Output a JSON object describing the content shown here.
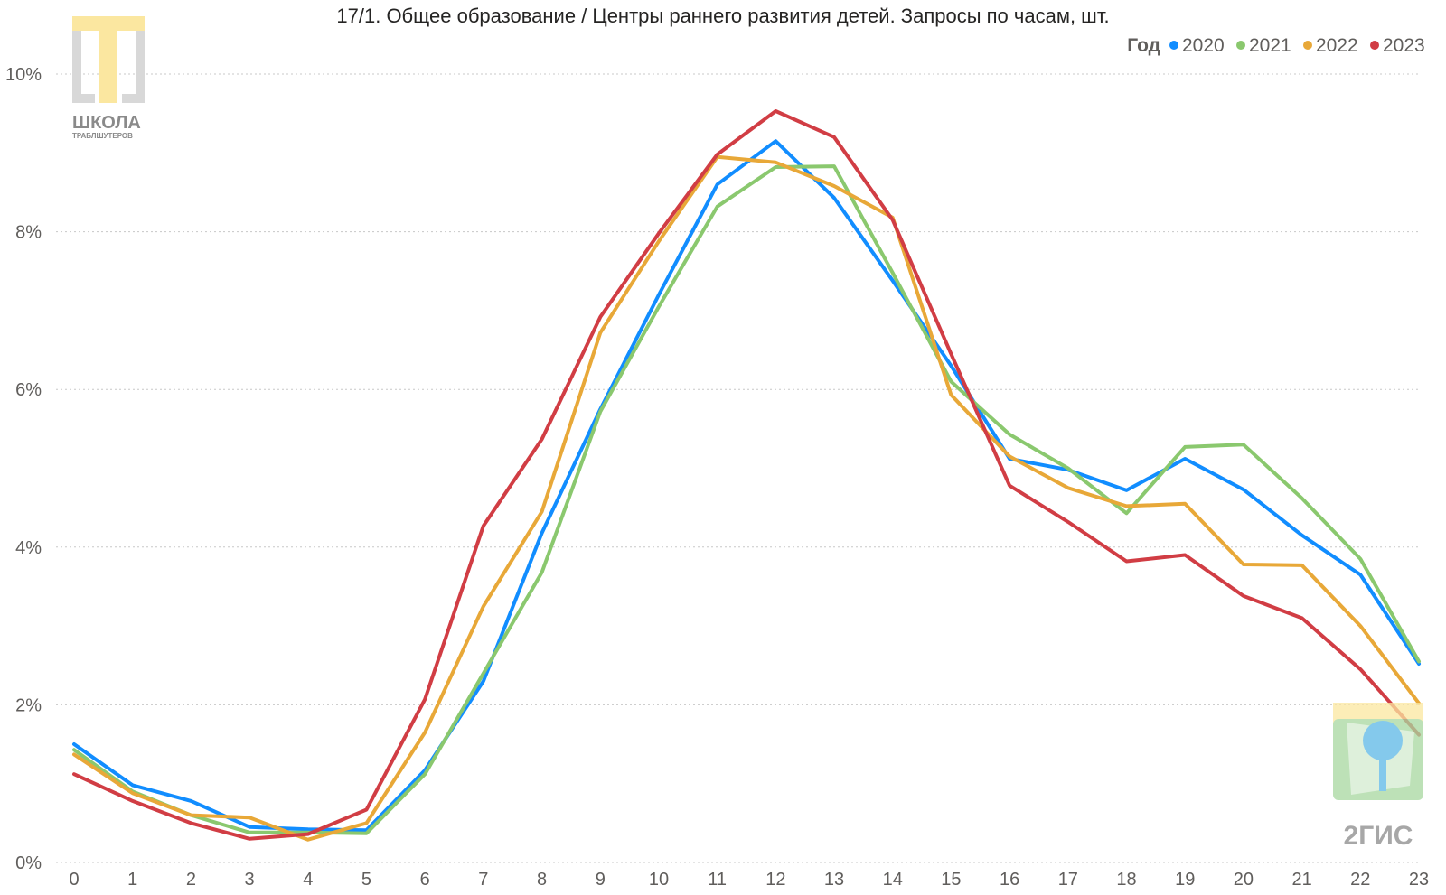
{
  "chart_data": {
    "type": "line",
    "title": "17/1. Общее образование / Центры раннего развития детей. Запросы по часам, шт.",
    "legend": {
      "title": "Год",
      "position": "top-right"
    },
    "x": [
      0,
      1,
      2,
      3,
      4,
      5,
      6,
      7,
      8,
      9,
      10,
      11,
      12,
      13,
      14,
      15,
      16,
      17,
      18,
      19,
      20,
      21,
      22,
      23
    ],
    "x_tick_labels": [
      "0",
      "1",
      "2",
      "3",
      "4",
      "5",
      "6",
      "7",
      "8",
      "9",
      "10",
      "11",
      "12",
      "13",
      "14",
      "15",
      "16",
      "17",
      "18",
      "19",
      "20",
      "21",
      "22",
      "23"
    ],
    "y_tick_labels": [
      "0%",
      "2%",
      "4%",
      "6%",
      "8%",
      "10%"
    ],
    "ylim": [
      0,
      10
    ],
    "y_ticks": [
      0,
      2,
      4,
      6,
      8,
      10
    ],
    "grid": true,
    "series": [
      {
        "name": "2020",
        "color": "#118dff",
        "values": [
          1.5,
          0.98,
          0.78,
          0.45,
          0.42,
          0.41,
          1.17,
          2.3,
          4.18,
          5.75,
          7.2,
          8.6,
          9.15,
          8.43,
          7.38,
          6.3,
          5.12,
          4.98,
          4.72,
          5.12,
          4.73,
          4.15,
          3.65,
          2.52
        ]
      },
      {
        "name": "2021",
        "color": "#8ac86e",
        "values": [
          1.43,
          0.9,
          0.6,
          0.38,
          0.38,
          0.37,
          1.12,
          2.4,
          3.68,
          5.72,
          7.05,
          8.32,
          8.82,
          8.83,
          7.48,
          6.1,
          5.43,
          5.0,
          4.43,
          5.27,
          5.3,
          4.62,
          3.85,
          2.55
        ]
      },
      {
        "name": "2022",
        "color": "#e8a838",
        "values": [
          1.37,
          0.88,
          0.6,
          0.57,
          0.29,
          0.5,
          1.65,
          3.25,
          4.45,
          6.72,
          7.88,
          8.95,
          8.88,
          8.58,
          8.18,
          5.93,
          5.15,
          4.75,
          4.52,
          4.55,
          3.78,
          3.77,
          3.0,
          2.02
        ]
      },
      {
        "name": "2023",
        "color": "#d13d44",
        "values": [
          1.12,
          0.78,
          0.5,
          0.3,
          0.36,
          0.67,
          2.07,
          4.27,
          5.37,
          6.92,
          7.98,
          8.98,
          9.53,
          9.2,
          8.15,
          6.45,
          4.78,
          4.32,
          3.82,
          3.9,
          3.38,
          3.1,
          2.45,
          1.62
        ]
      }
    ]
  },
  "watermarks": {
    "top_left": {
      "text": "ШКОЛА",
      "subtext": "ТРАБЛШУТЕРОВ",
      "icon": "school-logo-icon"
    },
    "bottom_right": {
      "text": "2ГИС",
      "icon": "2gis-logo-icon"
    }
  }
}
